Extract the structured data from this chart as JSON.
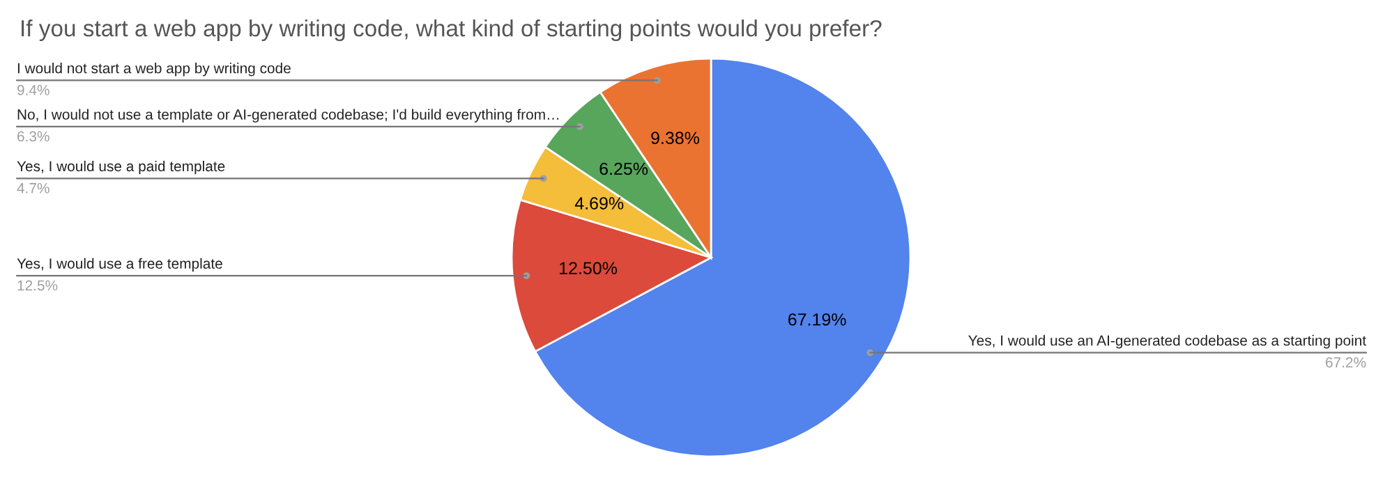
{
  "chart_data": {
    "type": "pie",
    "title": "If you start a web app by writing code, what kind of starting points would you prefer?",
    "categories": [
      "Yes, I would use an AI-generated codebase as a starting point",
      "Yes, I would use a free template",
      "Yes, I would use a paid template",
      "No, I would not use a template or AI-generated codebase; I'd build everything from…",
      "I would not start a web app by writing code"
    ],
    "values": [
      67.19,
      12.5,
      4.69,
      6.25,
      9.38
    ],
    "value_labels": [
      "67.19%",
      "12.50%",
      "4.69%",
      "6.25%",
      "9.38%"
    ],
    "colors": [
      "#5383ec",
      "#db4a3b",
      "#f4bd3a",
      "#58a55c",
      "#eb7331"
    ],
    "annotations": [
      "67.2%",
      "12.5%",
      "4.7%",
      "6.3%",
      "9.4%"
    ],
    "legend": false
  }
}
